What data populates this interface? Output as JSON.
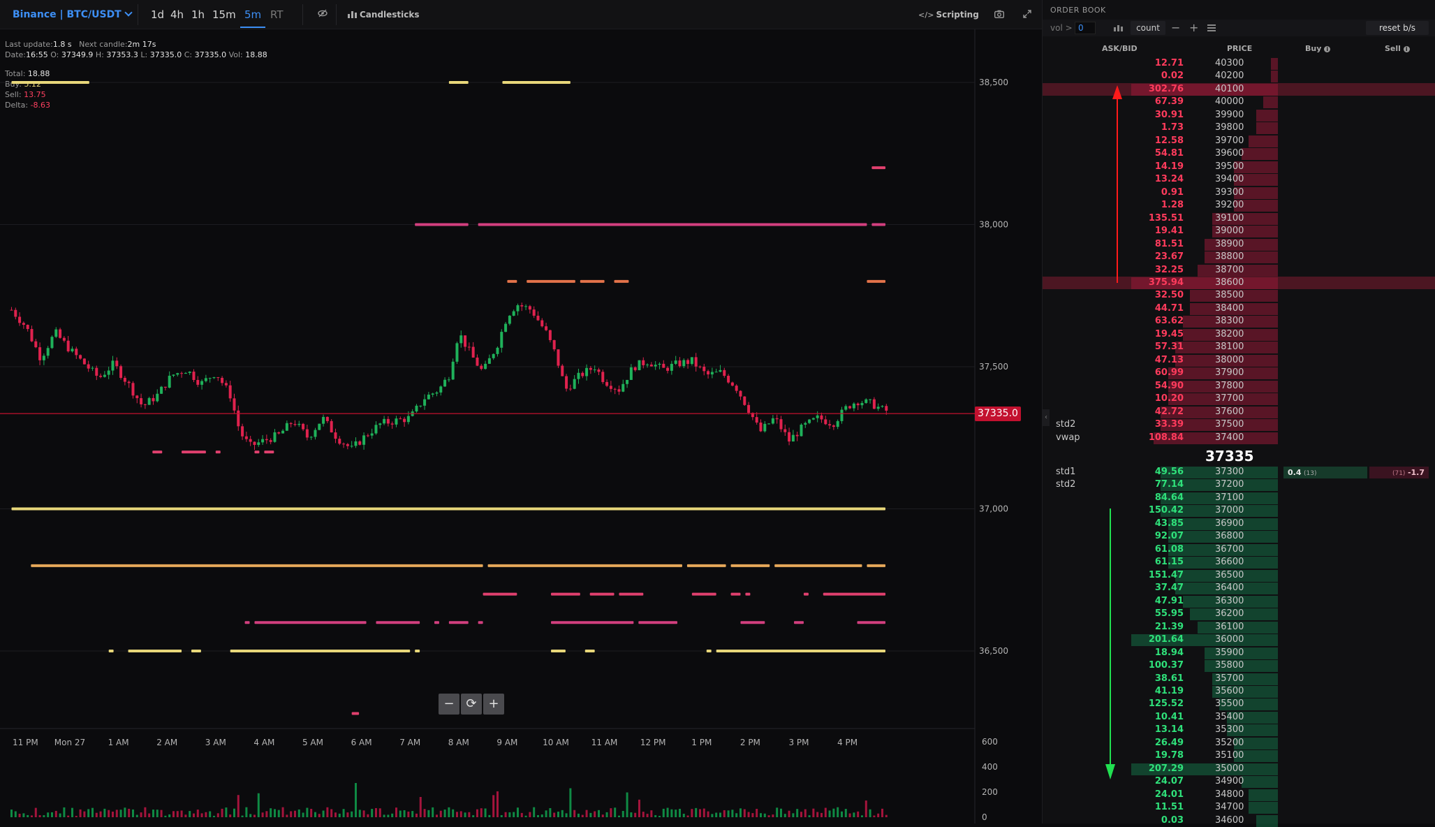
{
  "toolbar": {
    "exchange": "Binance | BTC/USDT",
    "timeframes": [
      "1d",
      "4h",
      "1h",
      "15m",
      "5m",
      "RT"
    ],
    "active_timeframe": "5m",
    "candlesticks_label": "Candlesticks",
    "scripting_label": "Scripting"
  },
  "info": {
    "last_update_label": "Last update:",
    "last_update": "1.8 s",
    "next_candle_label": "Next candle:",
    "next_candle": "2m 17s",
    "date_label": "Date:",
    "date": "16:55",
    "o_label": "O:",
    "o": "37349.9",
    "h_label": "H:",
    "h": "37353.3",
    "l_label": "L:",
    "l": "37335.0",
    "c_label": "C:",
    "c": "37335.0",
    "vol_label": "Vol:",
    "vol": "18.88",
    "total_label": "Total:",
    "total": "18.88",
    "buy_label": "Buy:",
    "buy": "5.12",
    "sell_label": "Sell:",
    "sell": "13.75",
    "delta_label": "Delta:",
    "delta": "-8.63"
  },
  "colors": {
    "up": "#1fb15a",
    "down": "#e0224e",
    "ask_text": "#ff3b5c",
    "bid_text": "#2fe07a",
    "accent": "#3d8ff5",
    "price_line": "#c3112f"
  },
  "chart_data": {
    "type": "candlestick",
    "current_price": 37335.0,
    "current_price_label": "37335.0",
    "y_ticks": [
      "38,500",
      "38,000",
      "37,500",
      "37,000",
      "36,500"
    ],
    "y_tick_values": [
      38500,
      38000,
      37500,
      37000,
      36500
    ],
    "ylim": [
      36250,
      38750
    ],
    "x_ticks": [
      "11 PM",
      "Mon 27",
      "1 AM",
      "2 AM",
      "3 AM",
      "4 AM",
      "5 AM",
      "6 AM",
      "7 AM",
      "8 AM",
      "9 AM",
      "10 AM",
      "11 AM",
      "12 PM",
      "1 PM",
      "2 PM",
      "3 PM",
      "4 PM"
    ],
    "x_tick_hours": [
      -1,
      0,
      1,
      2,
      3,
      4,
      5,
      6,
      7,
      8,
      9,
      10,
      11,
      12,
      13,
      14,
      15,
      16
    ],
    "volume_ticks": [
      "600",
      "400",
      "200",
      "0"
    ],
    "volume_tick_values": [
      600,
      400,
      200,
      0
    ],
    "price_path": [
      [
        -1.2,
        37700
      ],
      [
        -0.9,
        37640
      ],
      [
        -0.6,
        37530
      ],
      [
        -0.3,
        37620
      ],
      [
        0.0,
        37560
      ],
      [
        0.3,
        37510
      ],
      [
        0.6,
        37460
      ],
      [
        0.9,
        37510
      ],
      [
        1.2,
        37440
      ],
      [
        1.5,
        37360
      ],
      [
        1.8,
        37400
      ],
      [
        2.1,
        37470
      ],
      [
        2.4,
        37490
      ],
      [
        2.7,
        37440
      ],
      [
        3.0,
        37480
      ],
      [
        3.3,
        37400
      ],
      [
        3.5,
        37270
      ],
      [
        3.7,
        37220
      ],
      [
        4.0,
        37240
      ],
      [
        4.3,
        37260
      ],
      [
        4.6,
        37310
      ],
      [
        4.9,
        37250
      ],
      [
        5.2,
        37320
      ],
      [
        5.5,
        37250
      ],
      [
        5.8,
        37210
      ],
      [
        6.1,
        37260
      ],
      [
        6.4,
        37300
      ],
      [
        6.7,
        37310
      ],
      [
        7.0,
        37320
      ],
      [
        7.3,
        37390
      ],
      [
        7.6,
        37420
      ],
      [
        7.8,
        37470
      ],
      [
        8.0,
        37620
      ],
      [
        8.3,
        37530
      ],
      [
        8.5,
        37480
      ],
      [
        8.8,
        37580
      ],
      [
        9.0,
        37680
      ],
      [
        9.2,
        37720
      ],
      [
        9.5,
        37700
      ],
      [
        9.8,
        37620
      ],
      [
        10.0,
        37540
      ],
      [
        10.2,
        37420
      ],
      [
        10.5,
        37470
      ],
      [
        10.8,
        37500
      ],
      [
        11.0,
        37450
      ],
      [
        11.3,
        37420
      ],
      [
        11.6,
        37500
      ],
      [
        11.9,
        37520
      ],
      [
        12.2,
        37490
      ],
      [
        12.5,
        37510
      ],
      [
        12.8,
        37520
      ],
      [
        13.1,
        37470
      ],
      [
        13.4,
        37480
      ],
      [
        13.7,
        37430
      ],
      [
        14.0,
        37340
      ],
      [
        14.2,
        37270
      ],
      [
        14.5,
        37320
      ],
      [
        14.8,
        37240
      ],
      [
        15.1,
        37290
      ],
      [
        15.4,
        37320
      ],
      [
        15.7,
        37300
      ],
      [
        16.0,
        37360
      ],
      [
        16.2,
        37380
      ],
      [
        16.5,
        37370
      ],
      [
        16.7,
        37350
      ],
      [
        16.9,
        37340
      ],
      [
        17.0,
        37335
      ]
    ],
    "volume_profile_hint": "random bars, red/green"
  },
  "heat_levels": [
    {
      "price": 38500,
      "segments": [
        [
          -1.2,
          0.4
        ],
        [
          7.8,
          8.2
        ],
        [
          8.9,
          10.3
        ]
      ],
      "color": "#e8d77a"
    },
    {
      "price": 38200,
      "segments": [
        [
          16.5,
          17.0
        ]
      ],
      "color": "#e0406e"
    },
    {
      "price": 38000,
      "segments": [
        [
          7.1,
          8.2
        ],
        [
          8.4,
          16.4
        ],
        [
          16.5,
          17.0
        ]
      ],
      "color": "#d23f7e"
    },
    {
      "price": 37800,
      "segments": [
        [
          9.0,
          9.2
        ],
        [
          9.4,
          10.4
        ],
        [
          10.5,
          11.0
        ],
        [
          11.2,
          11.5
        ],
        [
          16.4,
          17.0
        ]
      ],
      "color": "#e3734a"
    },
    {
      "price": 37200,
      "segments": [
        [
          1.7,
          1.9
        ],
        [
          2.3,
          2.8
        ],
        [
          3.0,
          3.1
        ],
        [
          3.8,
          3.9
        ],
        [
          4.0,
          4.2
        ]
      ],
      "color": "#e0406e"
    },
    {
      "price": 37000,
      "segments": [
        [
          -1.2,
          17.0
        ]
      ],
      "color": "#e8d77a"
    },
    {
      "price": 36800,
      "segments": [
        [
          -0.8,
          8.5
        ],
        [
          8.6,
          12.6
        ],
        [
          12.7,
          13.5
        ],
        [
          13.6,
          14.4
        ],
        [
          14.5,
          16.3
        ],
        [
          16.4,
          17.0
        ]
      ],
      "color": "#e6a85a"
    },
    {
      "price": 36700,
      "segments": [
        [
          8.5,
          9.2
        ],
        [
          9.9,
          10.5
        ],
        [
          10.7,
          11.2
        ],
        [
          11.3,
          11.8
        ],
        [
          12.8,
          13.3
        ],
        [
          13.6,
          13.8
        ],
        [
          13.9,
          14.0
        ],
        [
          15.1,
          15.2
        ],
        [
          15.5,
          17.0
        ]
      ],
      "color": "#e0406e"
    },
    {
      "price": 36600,
      "segments": [
        [
          3.6,
          3.7
        ],
        [
          3.8,
          6.1
        ],
        [
          6.3,
          7.2
        ],
        [
          7.5,
          7.6
        ],
        [
          7.8,
          8.2
        ],
        [
          8.4,
          8.5
        ],
        [
          9.9,
          11.6
        ],
        [
          11.7,
          12.5
        ],
        [
          13.8,
          14.3
        ],
        [
          14.9,
          15.1
        ],
        [
          16.2,
          17.0
        ]
      ],
      "color": "#d23f7e"
    },
    {
      "price": 36500,
      "segments": [
        [
          0.8,
          0.9
        ],
        [
          1.2,
          2.3
        ],
        [
          2.5,
          2.7
        ],
        [
          3.3,
          7.0
        ],
        [
          7.1,
          7.2
        ],
        [
          9.9,
          10.2
        ],
        [
          10.6,
          10.8
        ],
        [
          13.1,
          13.2
        ],
        [
          13.3,
          17.0
        ]
      ],
      "color": "#e8d77a"
    },
    {
      "price": 36280,
      "segments": [
        [
          5.8,
          5.95
        ]
      ],
      "color": "#e0406e"
    }
  ],
  "orderbook": {
    "title": "ORDER BOOK",
    "vol_label": "vol >",
    "vol_value": "0",
    "count_label": "count",
    "minus_label": "−",
    "plus_label": "+",
    "reset_label": "reset b/s",
    "col_askbid": "ASK/BID",
    "col_price": "PRICE",
    "col_buy": "Buy",
    "col_sell": "Sell",
    "mid_price": "37335",
    "bid_buy_value": "0.4",
    "bid_buy_count": "(13)",
    "bid_sell_count": "(71)",
    "bid_sell_value": "-1.7",
    "asks": [
      {
        "price": "40300",
        "size": "12.71",
        "depth": 0.05
      },
      {
        "price": "40200",
        "size": "0.02",
        "depth": 0.05
      },
      {
        "price": "40100",
        "size": "302.76",
        "depth": 1.0,
        "hl": true
      },
      {
        "price": "40000",
        "size": "67.39",
        "depth": 0.1
      },
      {
        "price": "39900",
        "size": "30.91",
        "depth": 0.15
      },
      {
        "price": "39800",
        "size": "1.73",
        "depth": 0.15
      },
      {
        "price": "39700",
        "size": "12.58",
        "depth": 0.2
      },
      {
        "price": "39600",
        "size": "54.81",
        "depth": 0.25
      },
      {
        "price": "39500",
        "size": "14.19",
        "depth": 0.3
      },
      {
        "price": "39400",
        "size": "13.24",
        "depth": 0.3
      },
      {
        "price": "39300",
        "size": "0.91",
        "depth": 0.3
      },
      {
        "price": "39200",
        "size": "1.28",
        "depth": 0.3
      },
      {
        "price": "39100",
        "size": "135.51",
        "depth": 0.45
      },
      {
        "price": "39000",
        "size": "19.41",
        "depth": 0.45
      },
      {
        "price": "38900",
        "size": "81.51",
        "depth": 0.5
      },
      {
        "price": "38800",
        "size": "23.67",
        "depth": 0.5
      },
      {
        "price": "38700",
        "size": "32.25",
        "depth": 0.55
      },
      {
        "price": "38600",
        "size": "375.94",
        "depth": 1.0,
        "hl": true
      },
      {
        "price": "38500",
        "size": "32.50",
        "depth": 0.6
      },
      {
        "price": "38400",
        "size": "44.71",
        "depth": 0.6
      },
      {
        "price": "38300",
        "size": "63.62",
        "depth": 0.65
      },
      {
        "price": "38200",
        "size": "19.45",
        "depth": 0.65
      },
      {
        "price": "38100",
        "size": "57.31",
        "depth": 0.7
      },
      {
        "price": "38000",
        "size": "47.13",
        "depth": 0.7
      },
      {
        "price": "37900",
        "size": "60.99",
        "depth": 0.75
      },
      {
        "price": "37800",
        "size": "54.90",
        "depth": 0.75
      },
      {
        "price": "37700",
        "size": "10.20",
        "depth": 0.75
      },
      {
        "price": "37600",
        "size": "42.72",
        "depth": 0.8
      },
      {
        "price": "37500",
        "size": "33.39",
        "depth": 0.8,
        "ind": "std2"
      },
      {
        "price": "37400",
        "size": "108.84",
        "depth": 0.85,
        "ind": "vwap"
      }
    ],
    "bids": [
      {
        "price": "37300",
        "size": "49.56",
        "depth": 0.8,
        "ind": "std1"
      },
      {
        "price": "37200",
        "size": "77.14",
        "depth": 0.8,
        "ind": "std2"
      },
      {
        "price": "37100",
        "size": "84.64",
        "depth": 0.8
      },
      {
        "price": "37000",
        "size": "150.42",
        "depth": 0.8
      },
      {
        "price": "36900",
        "size": "43.85",
        "depth": 0.75
      },
      {
        "price": "36800",
        "size": "92.07",
        "depth": 0.75
      },
      {
        "price": "36700",
        "size": "61.08",
        "depth": 0.75
      },
      {
        "price": "36600",
        "size": "61.15",
        "depth": 0.75
      },
      {
        "price": "36500",
        "size": "151.47",
        "depth": 0.7
      },
      {
        "price": "36400",
        "size": "37.47",
        "depth": 0.7
      },
      {
        "price": "36300",
        "size": "47.91",
        "depth": 0.65
      },
      {
        "price": "36200",
        "size": "55.95",
        "depth": 0.6
      },
      {
        "price": "36100",
        "size": "21.39",
        "depth": 0.55
      },
      {
        "price": "36000",
        "size": "201.64",
        "depth": 1.0
      },
      {
        "price": "35900",
        "size": "18.94",
        "depth": 0.5
      },
      {
        "price": "35800",
        "size": "100.37",
        "depth": 0.5
      },
      {
        "price": "35700",
        "size": "38.61",
        "depth": 0.45
      },
      {
        "price": "35600",
        "size": "41.19",
        "depth": 0.45
      },
      {
        "price": "35500",
        "size": "125.52",
        "depth": 0.4
      },
      {
        "price": "35400",
        "size": "10.41",
        "depth": 0.35
      },
      {
        "price": "35300",
        "size": "13.14",
        "depth": 0.35
      },
      {
        "price": "35200",
        "size": "26.49",
        "depth": 0.3
      },
      {
        "price": "35100",
        "size": "19.78",
        "depth": 0.3
      },
      {
        "price": "35000",
        "size": "207.29",
        "depth": 1.0
      },
      {
        "price": "34900",
        "size": "24.07",
        "depth": 0.25
      },
      {
        "price": "34800",
        "size": "24.01",
        "depth": 0.2
      },
      {
        "price": "34700",
        "size": "11.51",
        "depth": 0.2
      },
      {
        "price": "34600",
        "size": "0.03",
        "depth": 0.15
      }
    ]
  }
}
